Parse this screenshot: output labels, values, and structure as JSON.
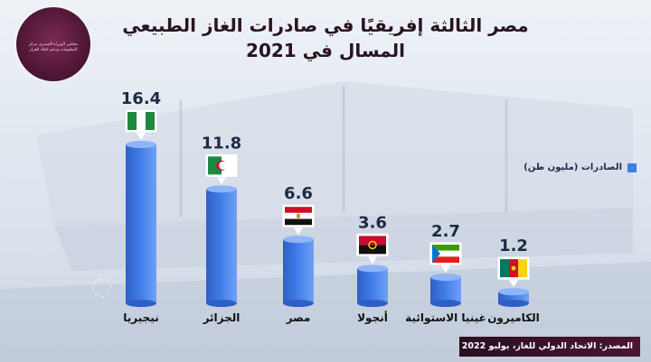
{
  "header": {
    "title_line1": "مصر الثالثة إفريقيًا في صادرات الغاز الطبيعي",
    "title_line2": "المسال في 2021",
    "logo_text": "مجلس الوزراء المصري مركز المعلومات ودعم اتخاذ القرار"
  },
  "legend": {
    "label": "الصادرات (مليون طن)"
  },
  "source": "المصدر: الاتحاد الدولي للغاز، يوليو 2022",
  "colors": {
    "bar": "#3f7ce8",
    "bar_dark": "#2f5fc4",
    "value_text": "#1d2a44",
    "accent": "#4a1533"
  },
  "chart_data": {
    "type": "bar",
    "title": "مصر الثالثة إفريقيًا في صادرات الغاز الطبيعي المسال في 2021",
    "series_label": "الصادرات (مليون طن)",
    "categories": [
      "نيجيريا",
      "الجزائر",
      "مصر",
      "أنجولا",
      "غينيا الاستوائية",
      "الكاميرون"
    ],
    "values": [
      16.4,
      11.8,
      6.6,
      3.6,
      2.7,
      1.2
    ],
    "value_labels": [
      "16.4",
      "11.8",
      "6.6",
      "3.6",
      "2.7",
      "1.2"
    ],
    "flags": [
      "nigeria-flag",
      "algeria-flag",
      "egypt-flag",
      "angola-flag",
      "equatorial-guinea-flag",
      "cameroon-flag"
    ],
    "ylim": [
      0,
      16.4
    ],
    "grid": false,
    "legend_position": "top-right"
  }
}
